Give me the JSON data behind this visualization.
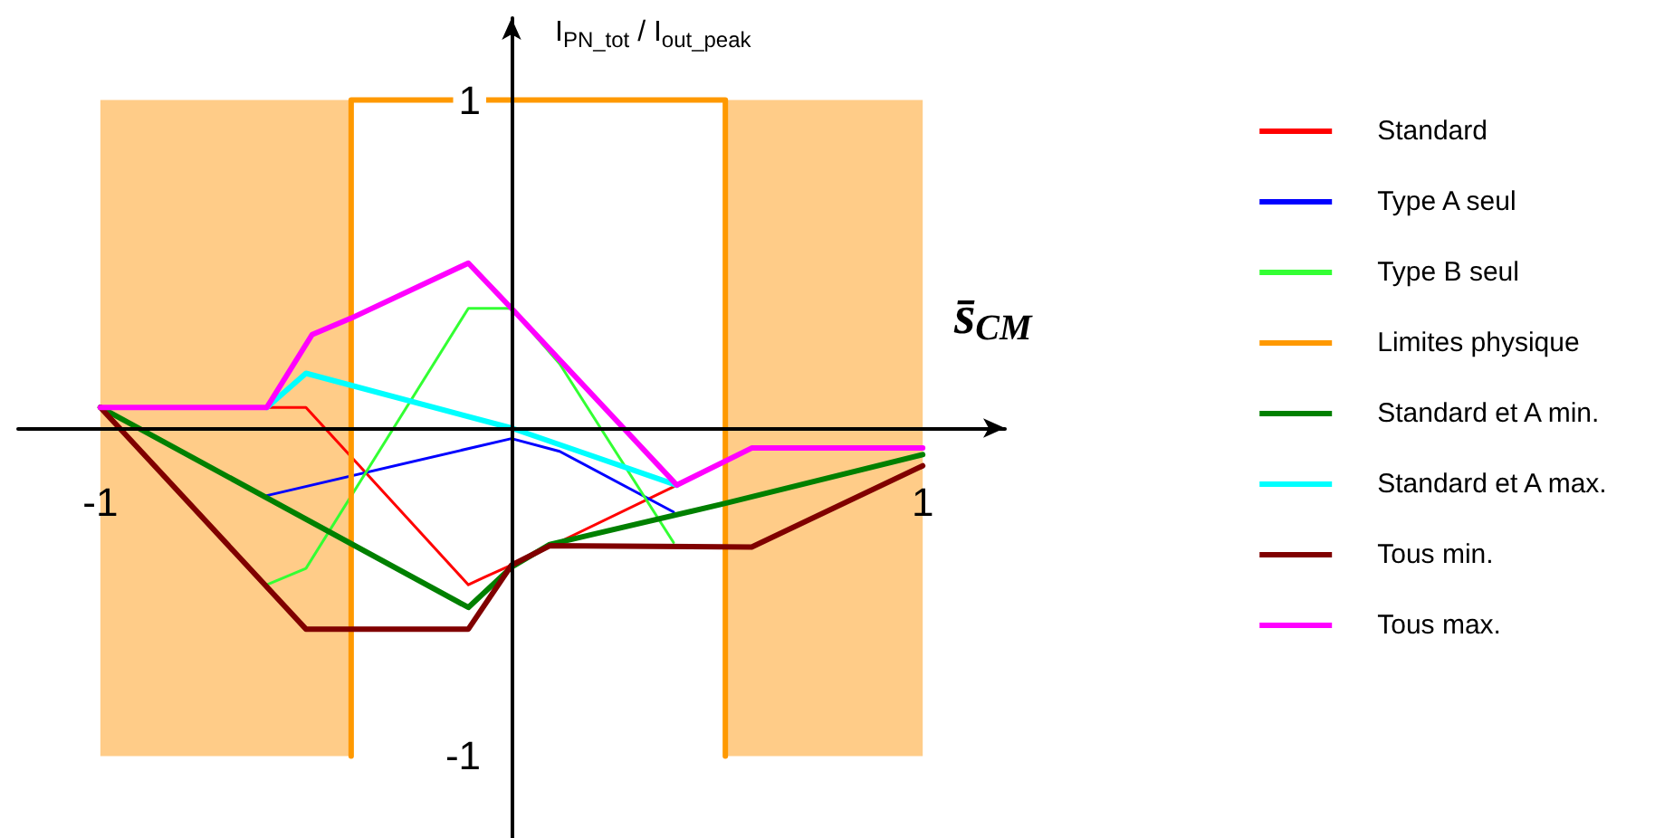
{
  "chart_data": {
    "type": "line",
    "xlabel": "s̄$_{CM}$",
    "ylabel": "I$_{PN_tot}$ / I$_{out_peak}$",
    "xlim": [
      -1.2,
      1.2
    ],
    "ylim": [
      -1.25,
      1.25
    ],
    "xticks": [
      -1,
      1
    ],
    "yticks": [
      -1,
      1
    ],
    "grid": false,
    "legend": "right",
    "marker": "none",
    "bands": [
      {
        "axis": "x",
        "from": -1,
        "to": -0.39,
        "color": "#ffcc88"
      },
      {
        "axis": "x",
        "from": 0.52,
        "to": 1,
        "color": "#ffcc88"
      }
    ],
    "series": [
      {
        "name": "Standard",
        "color": "#ff0000",
        "x": [
          -1,
          -0.5,
          -0.105,
          -0.065,
          0,
          0.402
        ],
        "values": [
          0.063,
          0.063,
          -0.478,
          -0.454,
          -0.418,
          -0.174
        ]
      },
      {
        "name": "Type A seul",
        "color": "#0000ff",
        "x": [
          -0.595,
          0,
          0.117,
          0.394
        ],
        "values": [
          -0.206,
          -0.032,
          -0.071,
          -0.256
        ]
      },
      {
        "name": "Type B seul",
        "color": "#33ff33",
        "x": [
          -0.595,
          -0.5,
          -0.105,
          0,
          0.117,
          0.394
        ],
        "values": [
          -0.478,
          -0.428,
          0.365,
          0.365,
          0.196,
          -0.349
        ]
      },
      {
        "name": "Limites physique",
        "color": "#ff9900",
        "x": [
          -0.39,
          -0.39,
          0.52,
          0.52
        ],
        "values": [
          -1,
          1,
          1,
          -1
        ]
      },
      {
        "name": "Standard et A min.",
        "color": "#008000",
        "x": [
          -1,
          -0.105,
          0,
          0.093,
          0.518,
          1
        ],
        "values": [
          0.063,
          -0.547,
          -0.424,
          -0.355,
          -0.23,
          -0.081
        ]
      },
      {
        "name": "Standard et A max.",
        "color": "#00ffff",
        "x": [
          -0.595,
          -0.5,
          0,
          0.402
        ],
        "values": [
          0.063,
          0.167,
          0,
          -0.174
        ]
      },
      {
        "name": "Tous min.",
        "color": "#800000",
        "x": [
          -1,
          -0.5,
          -0.105,
          0,
          0.093,
          0.584,
          1
        ],
        "values": [
          0.063,
          -0.613,
          -0.613,
          -0.418,
          -0.359,
          -0.363,
          -0.115
        ]
      },
      {
        "name": "Tous max.",
        "color": "#ff00ff",
        "x": [
          -1,
          -0.595,
          -0.485,
          -0.39,
          -0.105,
          0,
          0.402,
          0.584,
          1
        ],
        "values": [
          0.063,
          0.063,
          0.285,
          0.335,
          0.503,
          0.365,
          -0.174,
          -0.061,
          -0.061
        ]
      }
    ]
  }
}
